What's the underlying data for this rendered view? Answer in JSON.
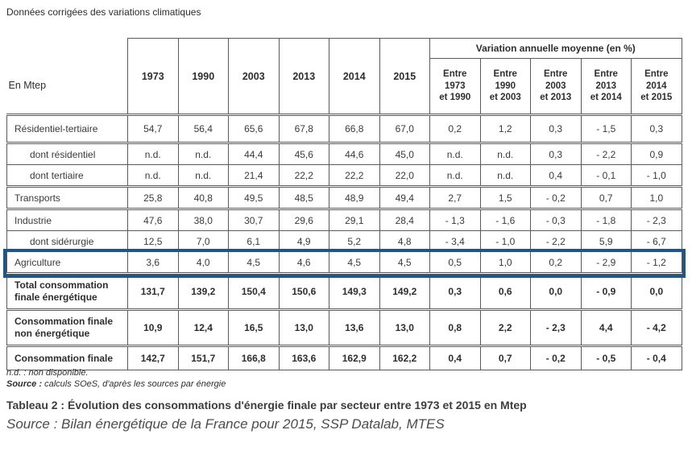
{
  "page": {
    "top_note": "Données corrigées des variations climatiques",
    "footnote_nd": "n.d. : non disponible.",
    "footnote_source_label": "Source :",
    "footnote_source_text": " calculs SOeS, d'après les sources par énergie",
    "caption_bold": "Tableau 2 : Évolution des consommations d'énergie finale par secteur entre 1973 et 2015 en Mtep",
    "caption_source": "Source :  Bilan énergétique de la France pour 2015, SSP Datalab, MTES"
  },
  "highlight": {
    "row": "agriculture",
    "color": "#20558a"
  },
  "table": {
    "unit_label": "En Mtep",
    "year_columns": [
      "1973",
      "1990",
      "2003",
      "2013",
      "2014",
      "2015"
    ],
    "variation_header": "Variation annuelle moyenne (en %)",
    "variation_columns": [
      "Entre\n1973\net 1990",
      "Entre\n1990\net 2003",
      "Entre\n2003\net 2013",
      "Entre\n2013\net 2014",
      "Entre\n2014\net 2015"
    ],
    "rows": [
      {
        "key": "residentiel-tertiaire",
        "label": "Résidentiel-tertiaire",
        "role": "main",
        "sep": false,
        "values": [
          "54,7",
          "56,4",
          "65,6",
          "67,8",
          "66,8",
          "67,0",
          "0,2",
          "1,2",
          "0,3",
          "- 1,5",
          "0,3"
        ]
      },
      {
        "key": "dont-residentiel",
        "label": "dont résidentiel",
        "role": "sub",
        "sep": true,
        "values": [
          "n.d.",
          "n.d.",
          "44,4",
          "45,6",
          "44,6",
          "45,0",
          "n.d.",
          "n.d.",
          "0,3",
          "- 2,2",
          "0,9"
        ]
      },
      {
        "key": "dont-tertiaire",
        "label": "dont tertiaire",
        "role": "sub",
        "sep": false,
        "values": [
          "n.d.",
          "n.d.",
          "21,4",
          "22,2",
          "22,2",
          "22,0",
          "n.d.",
          "n.d.",
          "0,4",
          "- 0,1",
          "- 1,0"
        ]
      },
      {
        "key": "transports",
        "label": "Transports",
        "role": "main",
        "sep": true,
        "values": [
          "25,8",
          "40,8",
          "49,5",
          "48,5",
          "48,9",
          "49,4",
          "2,7",
          "1,5",
          "- 0,2",
          "0,7",
          "1,0"
        ]
      },
      {
        "key": "industrie",
        "label": "Industrie",
        "role": "main",
        "sep": true,
        "values": [
          "47,6",
          "38,0",
          "30,7",
          "29,6",
          "29,1",
          "28,4",
          "- 1,3",
          "- 1,6",
          "- 0,3",
          "- 1,8",
          "- 2,3"
        ]
      },
      {
        "key": "dont-siderurgie",
        "label": "dont sidérurgie",
        "role": "sub",
        "sep": false,
        "values": [
          "12,5",
          "7,0",
          "6,1",
          "4,9",
          "5,2",
          "4,8",
          "- 3,4",
          "- 1,0",
          "- 2,2",
          "5,9",
          "- 6,7"
        ]
      },
      {
        "key": "agriculture",
        "label": "Agriculture",
        "role": "main",
        "sep": false,
        "highlighted": true,
        "values": [
          "3,6",
          "4,0",
          "4,5",
          "4,6",
          "4,5",
          "4,5",
          "0,5",
          "1,0",
          "0,2",
          "- 2,9",
          "- 1,2"
        ]
      },
      {
        "key": "total-energetique",
        "label": "Total consommation finale énergétique",
        "role": "total",
        "sep": true,
        "values": [
          "131,7",
          "139,2",
          "150,4",
          "150,6",
          "149,3",
          "149,2",
          "0,3",
          "0,6",
          "0,0",
          "- 0,9",
          "0,0"
        ]
      },
      {
        "key": "non-energetique",
        "label": "Consommation finale non énergétique",
        "role": "total",
        "sep": true,
        "values": [
          "10,9",
          "12,4",
          "16,5",
          "13,0",
          "13,6",
          "13,0",
          "0,8",
          "2,2",
          "- 2,3",
          "4,4",
          "- 4,2"
        ]
      },
      {
        "key": "consommation-finale",
        "label": "Consommation finale",
        "role": "total",
        "sep": true,
        "values": [
          "142,7",
          "151,7",
          "166,8",
          "163,6",
          "162,9",
          "162,2",
          "0,4",
          "0,7",
          "- 0,2",
          "- 0,5",
          "- 0,4"
        ]
      }
    ]
  }
}
